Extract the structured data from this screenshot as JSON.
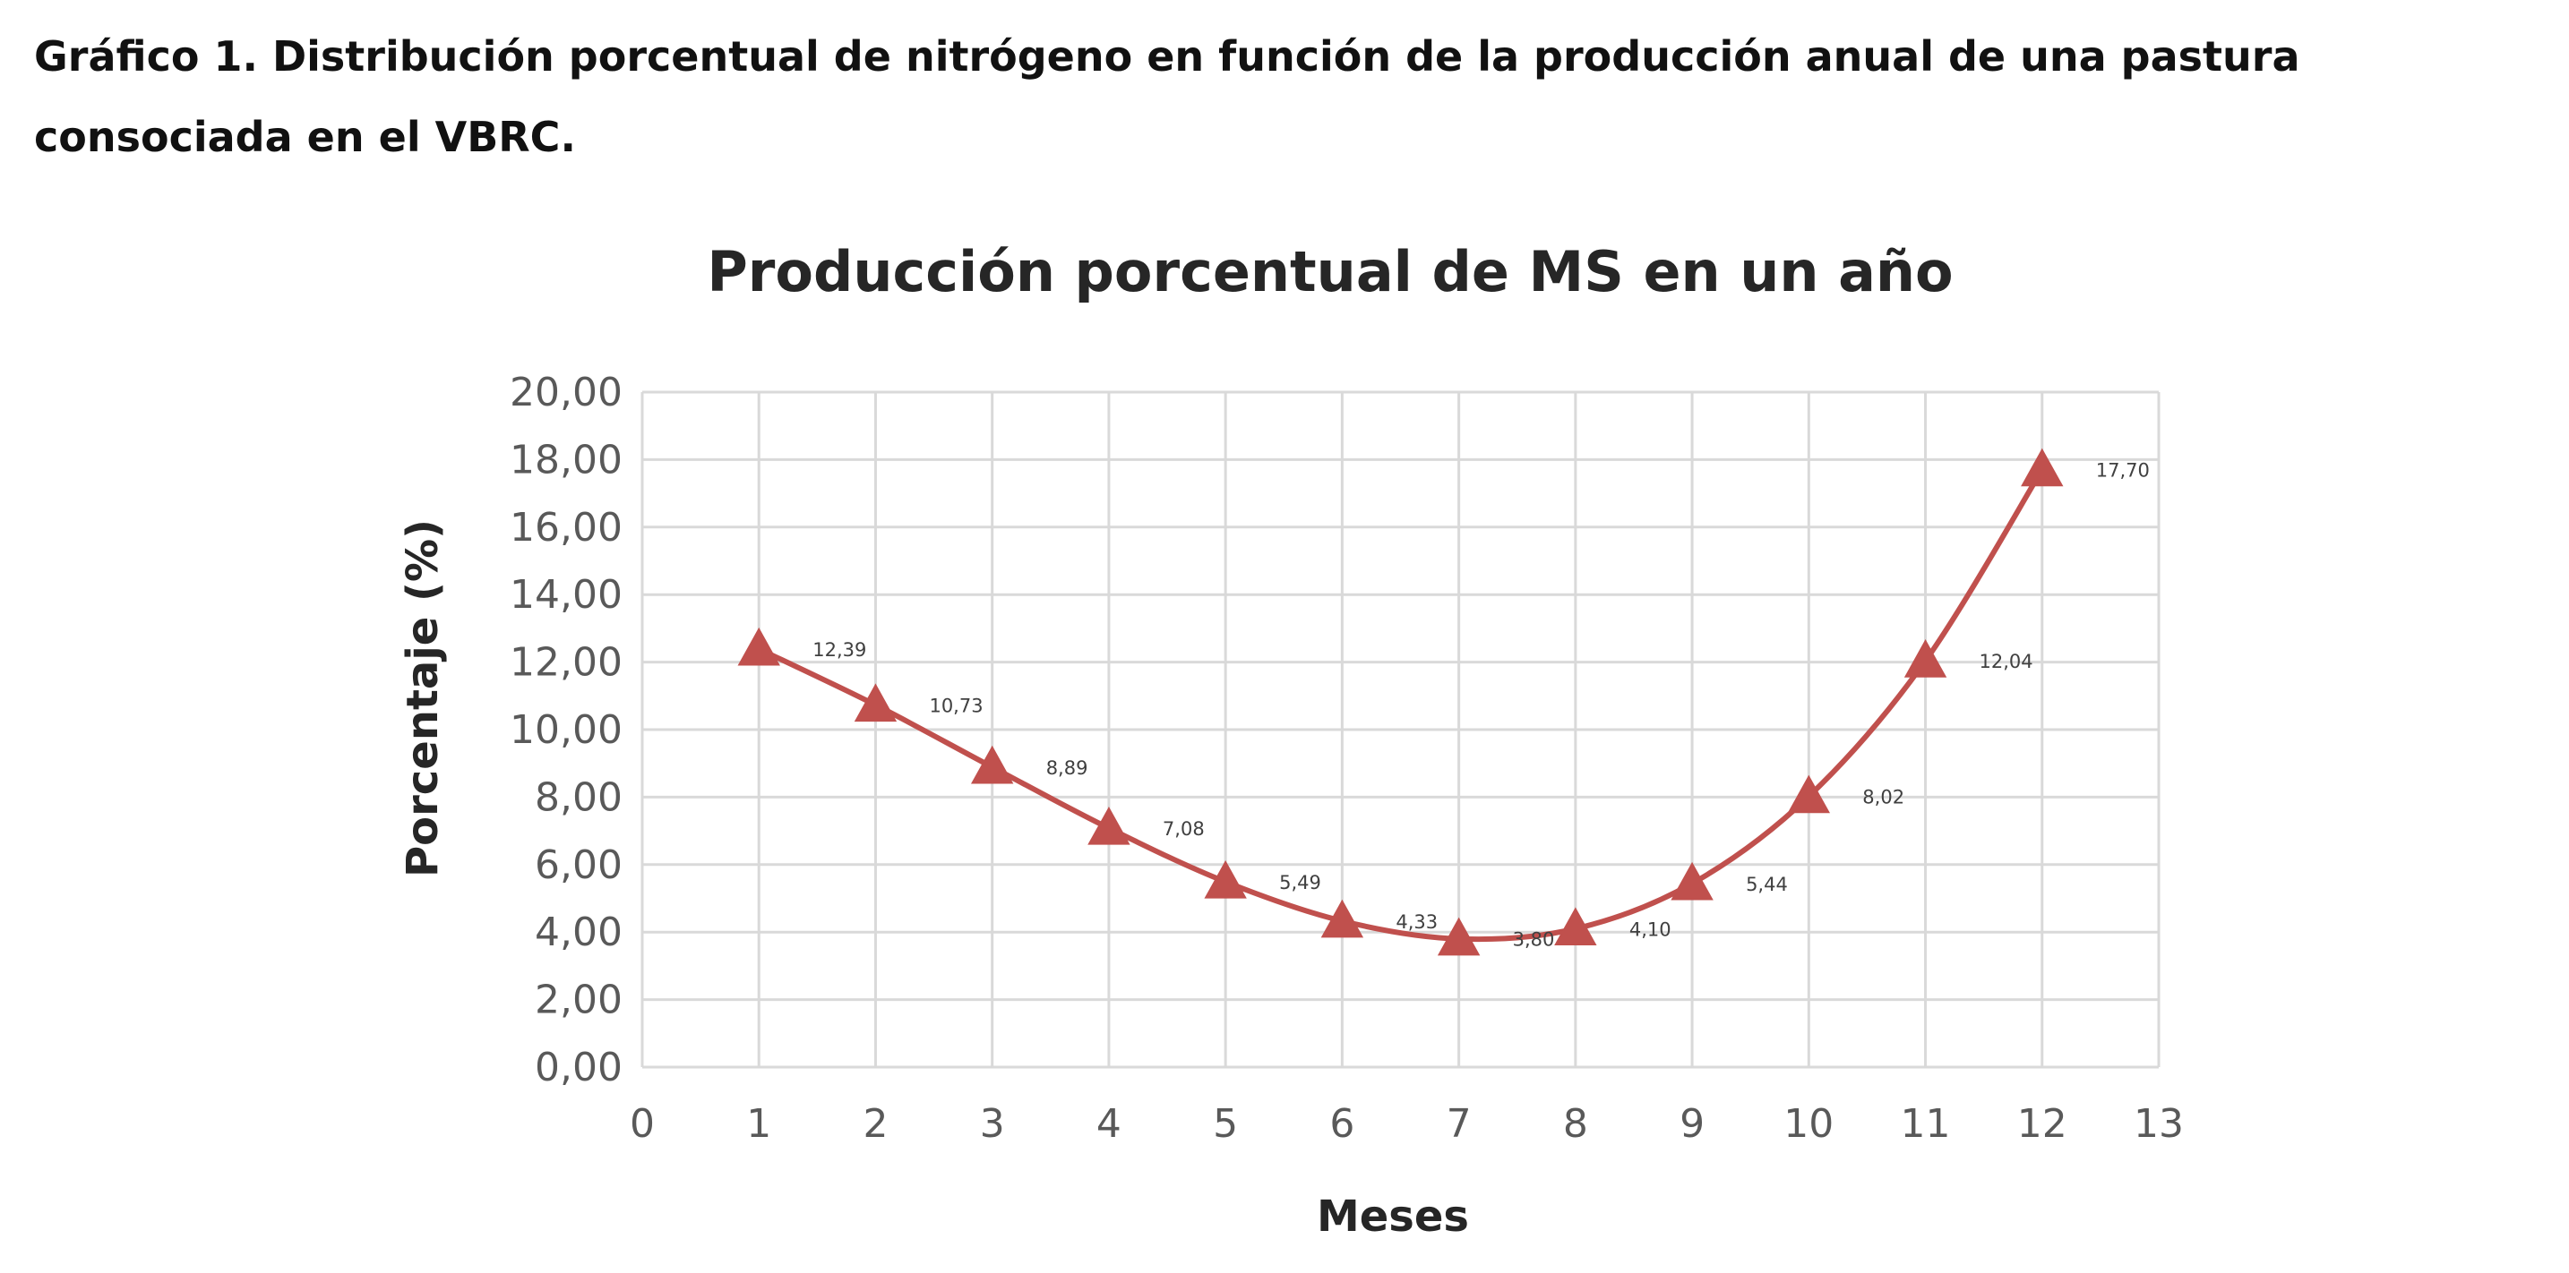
{
  "caption": "Gráfico 1. Distribución porcentual de nitrógeno en función de la producción anual de una pastura consociada en el VBRC.",
  "chart_data": {
    "type": "scatter",
    "title": "Producción porcentual de MS en un año",
    "xlabel": "Meses",
    "ylabel": "Porcentaje (%)",
    "xlim": [
      0,
      13
    ],
    "ylim": [
      0,
      20
    ],
    "x_ticks": [
      "0",
      "1",
      "2",
      "3",
      "4",
      "5",
      "6",
      "7",
      "8",
      "9",
      "10",
      "11",
      "12",
      "13"
    ],
    "y_ticks": [
      "0,00",
      "2,00",
      "4,00",
      "6,00",
      "8,00",
      "10,00",
      "12,00",
      "14,00",
      "16,00",
      "18,00",
      "20,00"
    ],
    "grid": true,
    "legend": "none",
    "marker": "triangle",
    "smoothed_line": true,
    "series_color": "#C0504D",
    "x": [
      1,
      2,
      3,
      4,
      5,
      6,
      7,
      8,
      9,
      10,
      11,
      12
    ],
    "y": [
      12.39,
      10.73,
      8.89,
      7.08,
      5.49,
      4.33,
      3.8,
      4.1,
      5.44,
      8.02,
      12.04,
      17.7
    ],
    "data_labels": [
      "12,39",
      "10,73",
      "8,89",
      "7,08",
      "5,49",
      "4,33",
      "3,80",
      "4,10",
      "5,44",
      "8,02",
      "12,04",
      "17,70"
    ]
  }
}
